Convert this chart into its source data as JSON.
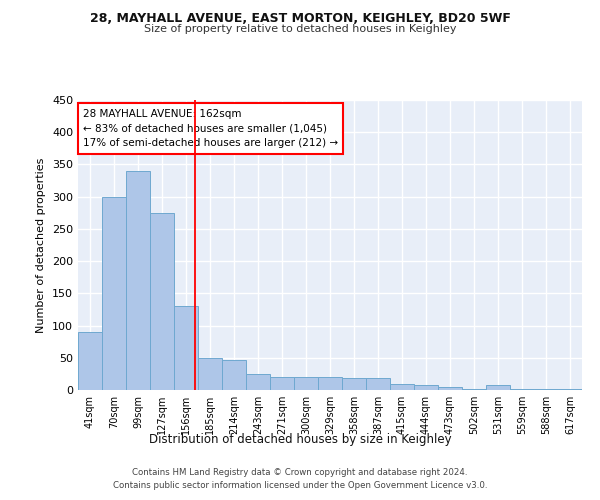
{
  "title1": "28, MAYHALL AVENUE, EAST MORTON, KEIGHLEY, BD20 5WF",
  "title2": "Size of property relative to detached houses in Keighley",
  "xlabel": "Distribution of detached houses by size in Keighley",
  "ylabel": "Number of detached properties",
  "categories": [
    "41sqm",
    "70sqm",
    "99sqm",
    "127sqm",
    "156sqm",
    "185sqm",
    "214sqm",
    "243sqm",
    "271sqm",
    "300sqm",
    "329sqm",
    "358sqm",
    "387sqm",
    "415sqm",
    "444sqm",
    "473sqm",
    "502sqm",
    "531sqm",
    "559sqm",
    "588sqm",
    "617sqm"
  ],
  "values": [
    90,
    300,
    340,
    275,
    130,
    50,
    47,
    25,
    20,
    20,
    20,
    18,
    18,
    10,
    8,
    5,
    2,
    8,
    2,
    2,
    2
  ],
  "bar_color": "#aec6e8",
  "bar_edge_color": "#6fa8d0",
  "property_line_x": 4.38,
  "annotation_text": "28 MAYHALL AVENUE: 162sqm\n← 83% of detached houses are smaller (1,045)\n17% of semi-detached houses are larger (212) →",
  "annotation_box_color": "white",
  "annotation_box_edge_color": "red",
  "line_color": "red",
  "footnote": "Contains HM Land Registry data © Crown copyright and database right 2024.\nContains public sector information licensed under the Open Government Licence v3.0.",
  "ylim": [
    0,
    450
  ],
  "background_color": "#e8eef8",
  "grid_color": "white"
}
